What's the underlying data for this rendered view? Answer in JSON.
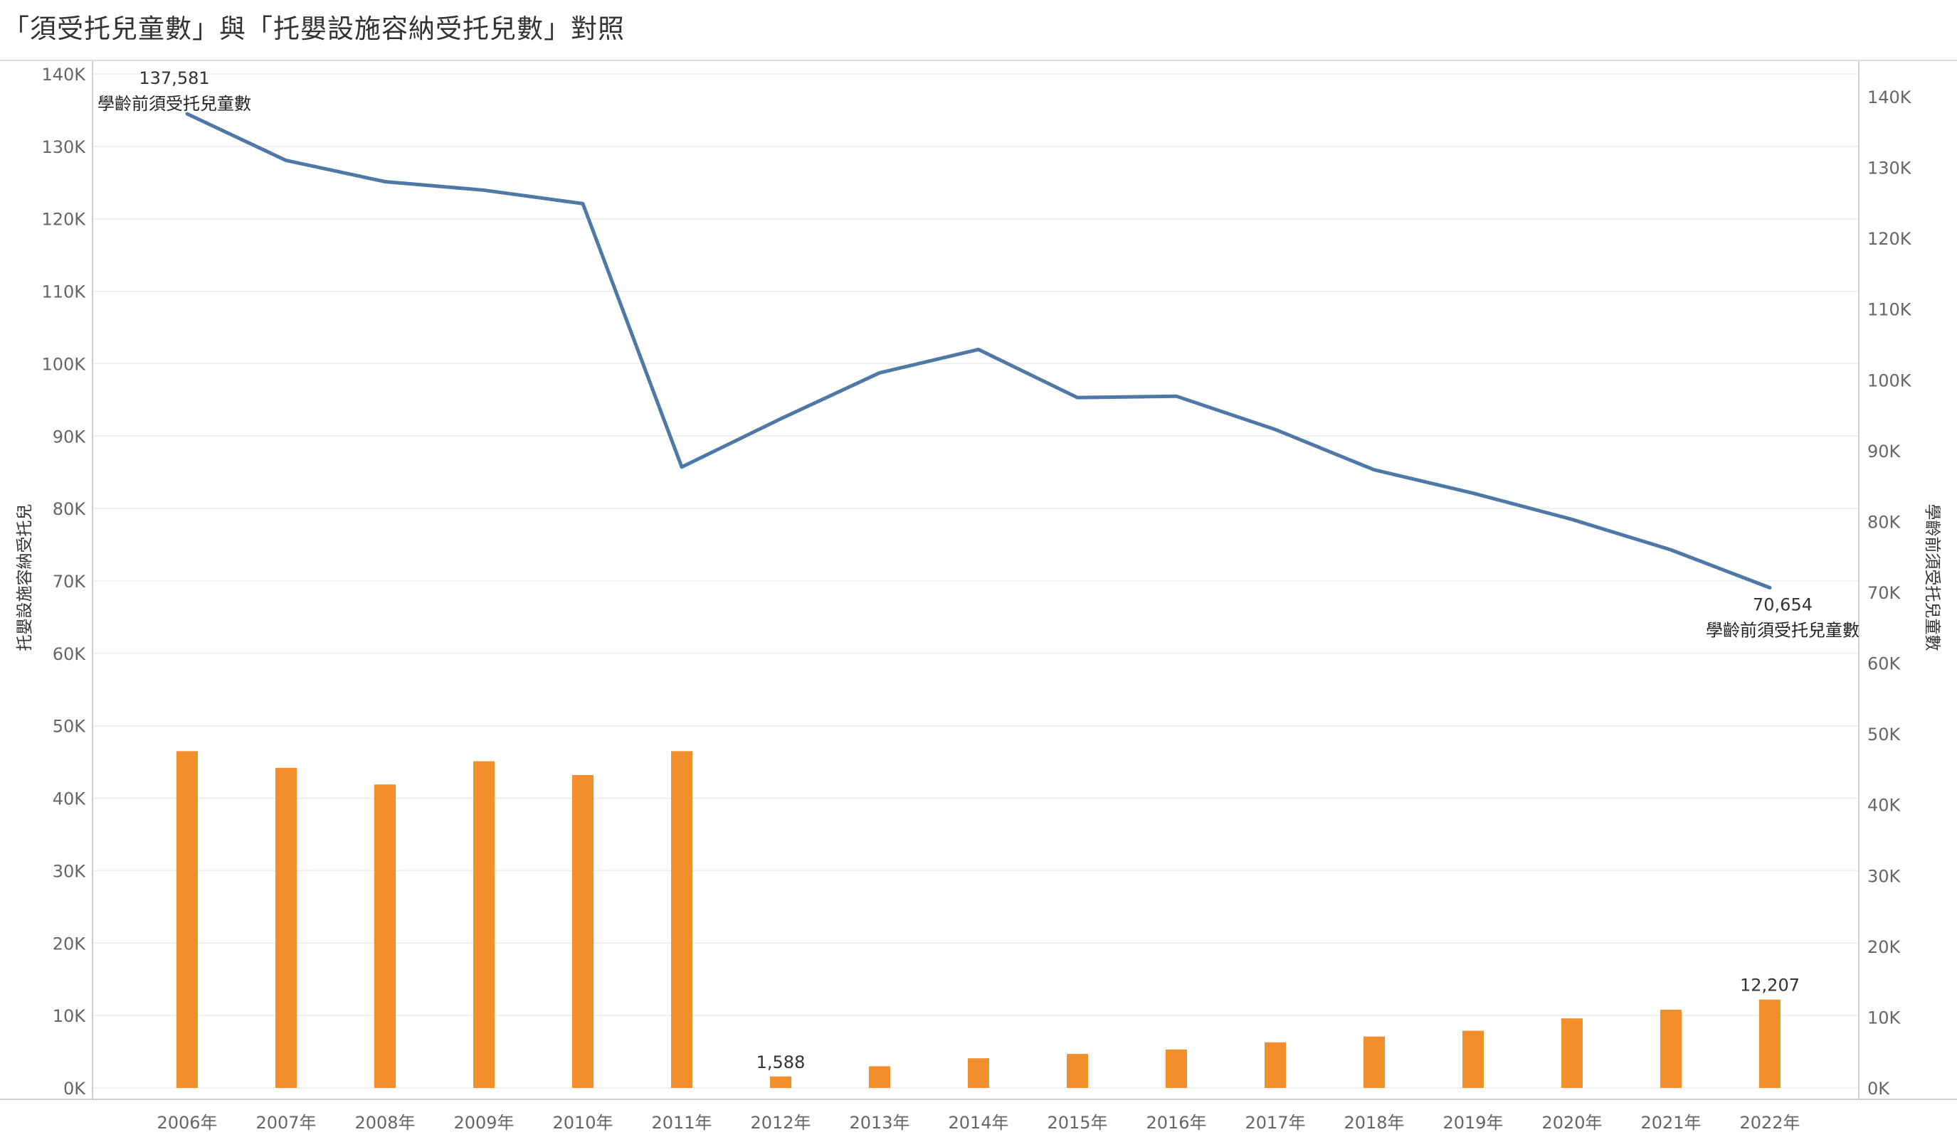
{
  "title": "「須受托兒童數」與「托嬰設施容納受托兒數」對照",
  "chart_data": {
    "type": "bar+line",
    "title": "「須受托兒童數」與「托嬰設施容納受托兒數」對照",
    "categories": [
      "2006年",
      "2007年",
      "2008年",
      "2009年",
      "2010年",
      "2011年",
      "2012年",
      "2013年",
      "2014年",
      "2015年",
      "2016年",
      "2017年",
      "2018年",
      "2019年",
      "2020年",
      "2021年",
      "2022年"
    ],
    "series": [
      {
        "name": "學齡前須受托兒童數",
        "kind": "line",
        "axis": "right",
        "color": "#4e79a7",
        "values": [
          137581,
          131000,
          128000,
          126800,
          124900,
          87700,
          94500,
          101000,
          104300,
          97500,
          97700,
          93000,
          87300,
          84000,
          80300,
          76000,
          70654
        ]
      },
      {
        "name": "托嬰設施容納受托兒",
        "kind": "bar",
        "axis": "left",
        "color": "#f28e2b",
        "values": [
          46500,
          44200,
          41900,
          45100,
          43200,
          46500,
          1588,
          3000,
          4100,
          4700,
          5300,
          6300,
          7100,
          7900,
          9600,
          10800,
          12207
        ]
      }
    ],
    "y_left": {
      "label": "托嬰設施容納受托兒",
      "ylim": [
        0,
        140000
      ],
      "ticks": [
        "0K",
        "10K",
        "20K",
        "30K",
        "40K",
        "50K",
        "60K",
        "70K",
        "80K",
        "90K",
        "100K",
        "110K",
        "120K",
        "130K",
        "140K"
      ]
    },
    "y_right": {
      "label": "學齡前須受托兒童數",
      "ylim": [
        0,
        140000
      ],
      "ticks": [
        "0K",
        "10K",
        "20K",
        "30K",
        "40K",
        "50K",
        "60K",
        "70K",
        "80K",
        "90K",
        "100K",
        "110K",
        "120K",
        "130K",
        "140K"
      ]
    },
    "annotations": [
      {
        "series": "line",
        "index": 0,
        "value_text": "137,581",
        "label_text": "學齡前須受托兒童數"
      },
      {
        "series": "line",
        "index": 16,
        "value_text": "70,654",
        "label_text": "學齡前須受托兒童數"
      },
      {
        "series": "bar",
        "index": 6,
        "value_text": "1,588"
      },
      {
        "series": "bar",
        "index": 16,
        "value_text": "12,207"
      }
    ],
    "grid": true
  }
}
